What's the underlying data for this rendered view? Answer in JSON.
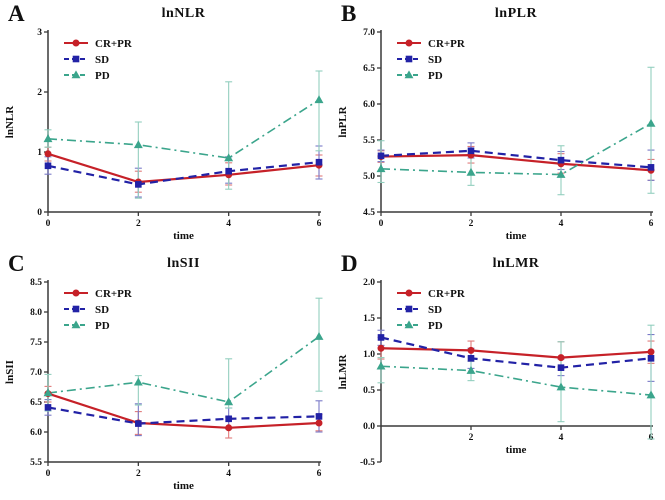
{
  "figure": {
    "background": "#ffffff",
    "axis_color": "#3a3a3a",
    "legend_position": "top-left"
  },
  "chart_data": [
    {
      "panel": "A",
      "type": "line",
      "title": "lnNLR",
      "xlabel": "time",
      "ylabel": "lnNLR",
      "x": [
        0,
        2,
        4,
        6
      ],
      "xticks": [
        0,
        2,
        4,
        6
      ],
      "xtick_labels": [
        "0",
        "2",
        "4",
        "6"
      ],
      "ylim": [
        0,
        3
      ],
      "yticks": [
        0,
        1,
        2,
        3
      ],
      "ytick_labels": [
        "0",
        "1",
        "2",
        "3"
      ],
      "x_axis_at": 0,
      "legend": [
        "CR+PR",
        "SD",
        "PD"
      ],
      "series": [
        {
          "name": "CR+PR",
          "color": "#c62128",
          "err_color": "#e07a7a",
          "dash": "solid",
          "marker": "circle",
          "values": [
            0.97,
            0.5,
            0.62,
            0.78
          ],
          "err_low": [
            0.85,
            0.33,
            0.45,
            0.6
          ],
          "err_high": [
            1.08,
            0.68,
            0.82,
            0.95
          ]
        },
        {
          "name": "SD",
          "color": "#2222a6",
          "err_color": "#7a7ac8",
          "dash": "dashed",
          "marker": "square",
          "values": [
            0.77,
            0.46,
            0.68,
            0.83
          ],
          "err_low": [
            0.63,
            0.25,
            0.48,
            0.55
          ],
          "err_high": [
            0.92,
            0.73,
            0.92,
            1.1
          ]
        },
        {
          "name": "PD",
          "color": "#3ba58c",
          "err_color": "#93cfbf",
          "dash": "dashdot",
          "marker": "triangle",
          "values": [
            1.22,
            1.12,
            0.9,
            1.87
          ],
          "err_low": [
            1.08,
            0.23,
            0.38,
            1.02
          ],
          "err_high": [
            1.37,
            1.5,
            2.17,
            2.35
          ]
        }
      ]
    },
    {
      "panel": "B",
      "type": "line",
      "title": "lnPLR",
      "xlabel": "time",
      "ylabel": "lnPLR",
      "x": [
        0,
        2,
        4,
        6
      ],
      "xticks": [
        0,
        2,
        4,
        6
      ],
      "xtick_labels": [
        "0",
        "2",
        "4",
        "6"
      ],
      "ylim": [
        4.5,
        7.0
      ],
      "yticks": [
        4.5,
        5.0,
        5.5,
        6.0,
        6.5,
        7.0
      ],
      "ytick_labels": [
        "4.5",
        "5.0",
        "5.5",
        "6.0",
        "6.5",
        "7.0"
      ],
      "x_axis_at": 4.5,
      "legend": [
        "CR+PR",
        "SD",
        "PD"
      ],
      "series": [
        {
          "name": "CR+PR",
          "color": "#c62128",
          "err_color": "#e07a7a",
          "dash": "solid",
          "marker": "circle",
          "values": [
            5.27,
            5.29,
            5.17,
            5.08
          ],
          "err_low": [
            5.19,
            5.18,
            5.04,
            4.94
          ],
          "err_high": [
            5.35,
            5.41,
            5.31,
            5.23
          ]
        },
        {
          "name": "SD",
          "color": "#2222a6",
          "err_color": "#7a7ac8",
          "dash": "dashed",
          "marker": "square",
          "values": [
            5.28,
            5.35,
            5.22,
            5.12
          ],
          "err_low": [
            5.2,
            5.25,
            5.09,
            4.94
          ],
          "err_high": [
            5.36,
            5.46,
            5.34,
            5.36
          ]
        },
        {
          "name": "PD",
          "color": "#3ba58c",
          "err_color": "#93cfbf",
          "dash": "dashdot",
          "marker": "triangle",
          "values": [
            5.1,
            5.05,
            5.02,
            5.73
          ],
          "err_low": [
            4.91,
            4.87,
            4.74,
            4.76
          ],
          "err_high": [
            5.49,
            5.28,
            5.42,
            6.51
          ]
        }
      ]
    },
    {
      "panel": "C",
      "type": "line",
      "title": "lnSII",
      "xlabel": "time",
      "ylabel": "lnSII",
      "x": [
        0,
        2,
        4,
        6
      ],
      "xticks": [
        0,
        2,
        4,
        6
      ],
      "xtick_labels": [
        "0",
        "2",
        "4",
        "6"
      ],
      "ylim": [
        5.5,
        8.5
      ],
      "yticks": [
        5.5,
        6.0,
        6.5,
        7.0,
        7.5,
        8.0,
        8.5
      ],
      "ytick_labels": [
        "5.5",
        "6.0",
        "6.5",
        "7.0",
        "7.5",
        "8.0",
        "8.5"
      ],
      "x_axis_at": 5.5,
      "legend": [
        "CR+PR",
        "SD",
        "PD"
      ],
      "series": [
        {
          "name": "CR+PR",
          "color": "#c62128",
          "err_color": "#e07a7a",
          "dash": "solid",
          "marker": "circle",
          "values": [
            6.64,
            6.15,
            6.07,
            6.15
          ],
          "err_low": [
            6.5,
            5.96,
            5.9,
            6.02
          ],
          "err_high": [
            6.76,
            6.34,
            6.25,
            6.29
          ]
        },
        {
          "name": "SD",
          "color": "#2222a6",
          "err_color": "#7a7ac8",
          "dash": "dashed",
          "marker": "square",
          "values": [
            6.41,
            6.14,
            6.22,
            6.26
          ],
          "err_low": [
            6.28,
            5.94,
            6.05,
            6.0
          ],
          "err_high": [
            6.54,
            6.47,
            6.4,
            6.52
          ]
        },
        {
          "name": "PD",
          "color": "#3ba58c",
          "err_color": "#93cfbf",
          "dash": "dashdot",
          "marker": "triangle",
          "values": [
            6.65,
            6.83,
            6.5,
            7.59
          ],
          "err_low": [
            6.35,
            6.45,
            6.4,
            6.68
          ],
          "err_high": [
            6.96,
            6.94,
            7.22,
            8.23
          ]
        }
      ]
    },
    {
      "panel": "D",
      "type": "line",
      "title": "lnLMR",
      "xlabel": "time",
      "ylabel": "lnLMR",
      "x": [
        0,
        2,
        4,
        6
      ],
      "xticks": [
        2,
        4,
        6
      ],
      "xtick_labels": [
        "2",
        "4",
        "6"
      ],
      "ylim": [
        -0.5,
        2.0
      ],
      "yticks": [
        -0.5,
        0.0,
        0.5,
        1.0,
        1.5,
        2.0
      ],
      "ytick_labels": [
        "-0.5",
        "0.0",
        "0.5",
        "1.0",
        "1.5",
        "2.0"
      ],
      "x_axis_at": 0.0,
      "legend": [
        "CR+PR",
        "SD",
        "PD"
      ],
      "series": [
        {
          "name": "CR+PR",
          "color": "#c62128",
          "err_color": "#e07a7a",
          "dash": "solid",
          "marker": "circle",
          "values": [
            1.08,
            1.05,
            0.95,
            1.03
          ],
          "err_low": [
            0.93,
            0.9,
            0.82,
            0.87
          ],
          "err_high": [
            1.23,
            1.18,
            1.17,
            1.18
          ]
        },
        {
          "name": "SD",
          "color": "#2222a6",
          "err_color": "#7a7ac8",
          "dash": "dashed",
          "marker": "square",
          "values": [
            1.23,
            0.94,
            0.81,
            0.94
          ],
          "err_low": [
            1.12,
            0.8,
            0.7,
            0.62
          ],
          "err_high": [
            1.33,
            1.08,
            0.93,
            1.27
          ]
        },
        {
          "name": "PD",
          "color": "#3ba58c",
          "err_color": "#93cfbf",
          "dash": "dashdot",
          "marker": "triangle",
          "values": [
            0.83,
            0.77,
            0.54,
            0.43
          ],
          "err_low": [
            0.6,
            0.63,
            0.06,
            -0.18
          ],
          "err_high": [
            0.95,
            0.9,
            1.17,
            1.4
          ]
        }
      ]
    }
  ]
}
